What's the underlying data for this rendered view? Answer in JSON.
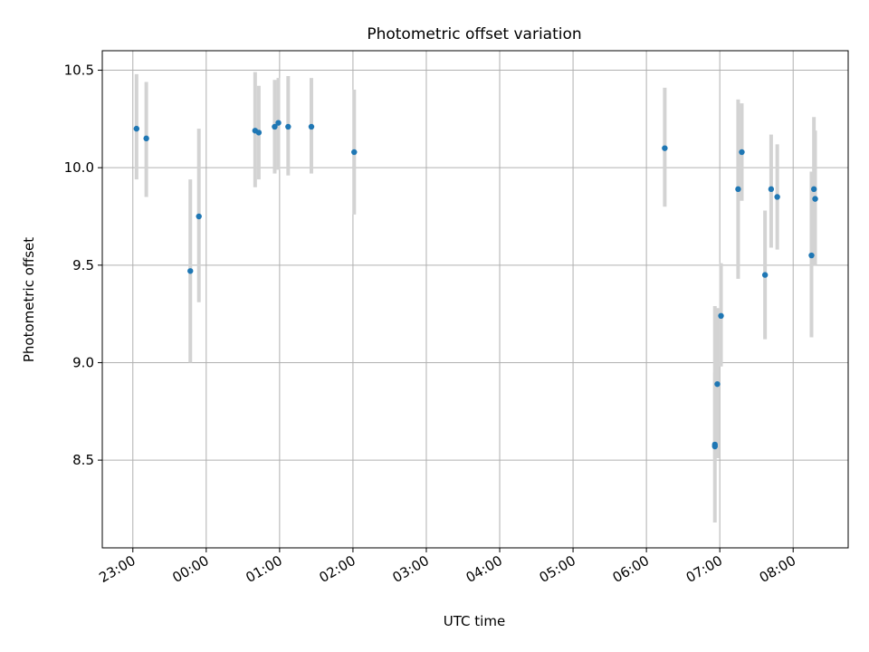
{
  "chart_data": {
    "type": "scatter",
    "title": "Photometric offset variation",
    "xlabel": "UTC time",
    "ylabel": "Photometric offset",
    "x_ticks": [
      "23:00",
      "00:00",
      "01:00",
      "02:00",
      "03:00",
      "04:00",
      "05:00",
      "06:00",
      "07:00",
      "08:00"
    ],
    "y_ticks": [
      "8.5",
      "9.0",
      "9.5",
      "10.0",
      "10.5"
    ],
    "xlim": [
      "22:35",
      "08:45"
    ],
    "ylim": [
      8.05,
      10.6
    ],
    "grid": true,
    "legend": "none",
    "point_color": "#1f77b4",
    "errorbar_color": "#d3d3d3",
    "points": [
      {
        "x": "23:03",
        "y": 10.2,
        "ylow": 9.94,
        "yhigh": 10.48
      },
      {
        "x": "23:11",
        "y": 10.15,
        "ylow": 9.85,
        "yhigh": 10.44
      },
      {
        "x": "23:47",
        "y": 9.47,
        "ylow": 9.0,
        "yhigh": 9.94
      },
      {
        "x": "23:54",
        "y": 9.75,
        "ylow": 9.31,
        "yhigh": 10.2
      },
      {
        "x": "00:40",
        "y": 10.19,
        "ylow": 9.9,
        "yhigh": 10.49
      },
      {
        "x": "00:43",
        "y": 10.18,
        "ylow": 9.94,
        "yhigh": 10.42
      },
      {
        "x": "00:56",
        "y": 10.21,
        "ylow": 9.97,
        "yhigh": 10.45
      },
      {
        "x": "00:59",
        "y": 10.23,
        "ylow": 9.99,
        "yhigh": 10.46
      },
      {
        "x": "01:07",
        "y": 10.21,
        "ylow": 9.96,
        "yhigh": 10.47
      },
      {
        "x": "01:26",
        "y": 10.21,
        "ylow": 9.97,
        "yhigh": 10.46
      },
      {
        "x": "02:01",
        "y": 10.08,
        "ylow": 9.76,
        "yhigh": 10.4
      },
      {
        "x": "06:15",
        "y": 10.1,
        "ylow": 9.8,
        "yhigh": 10.41
      },
      {
        "x": "06:56",
        "y": 8.58,
        "ylow": 8.18,
        "yhigh": 8.95
      },
      {
        "x": "06:56",
        "y": 8.57,
        "ylow": 8.51,
        "yhigh": 9.29
      },
      {
        "x": "06:58",
        "y": 8.89,
        "ylow": 8.51,
        "yhigh": 9.28
      },
      {
        "x": "07:01",
        "y": 9.24,
        "ylow": 8.98,
        "yhigh": 9.51
      },
      {
        "x": "07:15",
        "y": 9.89,
        "ylow": 9.43,
        "yhigh": 10.35
      },
      {
        "x": "07:18",
        "y": 10.08,
        "ylow": 9.83,
        "yhigh": 10.33
      },
      {
        "x": "07:37",
        "y": 9.45,
        "ylow": 9.12,
        "yhigh": 9.78
      },
      {
        "x": "07:42",
        "y": 9.89,
        "ylow": 9.59,
        "yhigh": 10.17
      },
      {
        "x": "07:47",
        "y": 9.85,
        "ylow": 9.58,
        "yhigh": 10.12
      },
      {
        "x": "08:15",
        "y": 9.55,
        "ylow": 9.13,
        "yhigh": 9.98
      },
      {
        "x": "08:17",
        "y": 9.89,
        "ylow": 9.5,
        "yhigh": 10.26
      },
      {
        "x": "08:18",
        "y": 9.84,
        "ylow": 9.5,
        "yhigh": 10.19
      }
    ]
  }
}
